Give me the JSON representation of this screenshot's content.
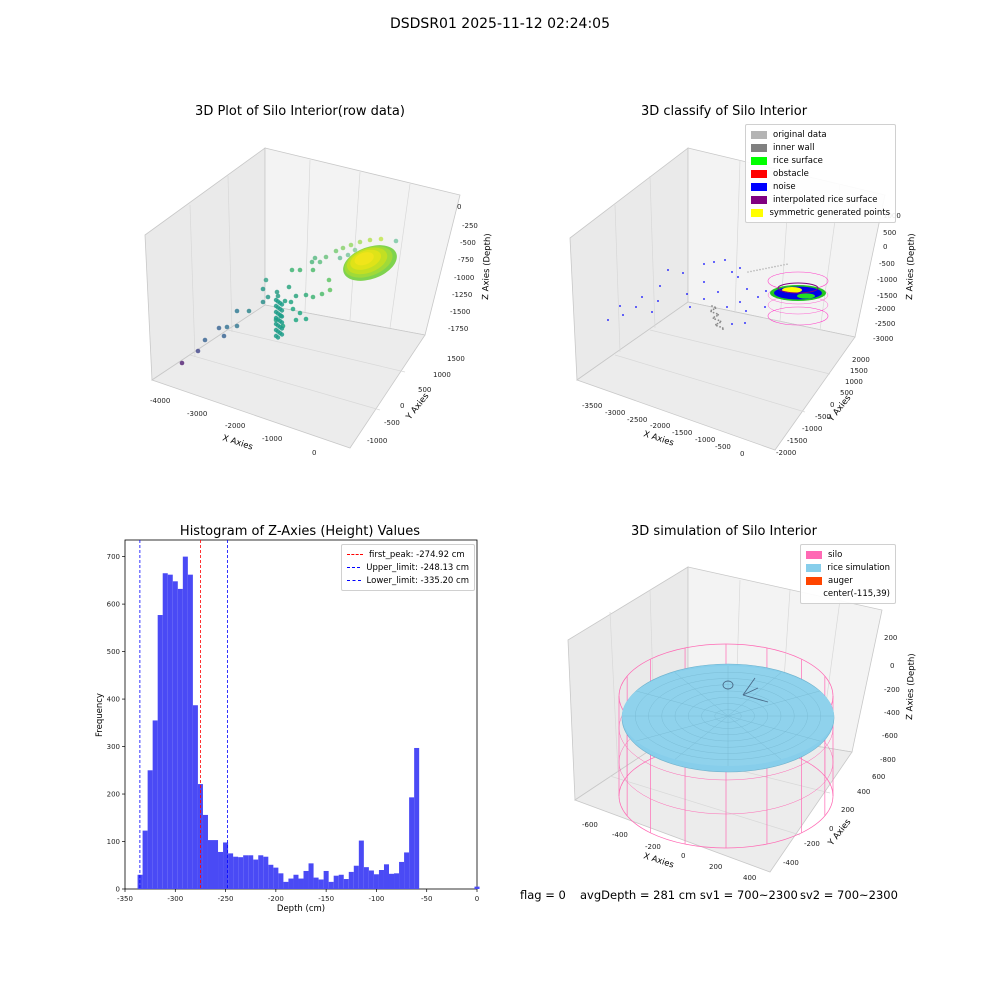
{
  "suptitle": "DSDSR01 2025-11-12 02:24:05",
  "colors": {
    "pane": "#eeeeee",
    "grid": "#d4d4d4",
    "hist_bar": "#4a4af5"
  },
  "panels": {
    "raw": {
      "title": "3D Plot of Silo Interior(row data)",
      "xlabel": "X Axies",
      "ylabel": "Y Axies",
      "zlabel": "Z Axies (Depth)",
      "xticks": [
        "-4000",
        "-3000",
        "-2000",
        "-1000",
        "0"
      ],
      "yticks": [
        "-1000",
        "-500",
        "0",
        "500",
        "1000",
        "1500"
      ],
      "zticks": [
        "0",
        "-250",
        "-500",
        "-750",
        "-1000",
        "-1250",
        "-1500",
        "-1750"
      ]
    },
    "classify": {
      "title": "3D classify of Silo Interior",
      "xlabel": "X Axies",
      "ylabel": "Y Axies",
      "zlabel": "Z Axies (Depth)",
      "xticks": [
        "-3500",
        "-3000",
        "-2500",
        "-2000",
        "-1500",
        "-1000",
        "-500",
        "0"
      ],
      "yticks": [
        "-2000",
        "-1500",
        "-1000",
        "-500",
        "0",
        "500",
        "1000",
        "1500",
        "2000"
      ],
      "zticks": [
        "1000",
        "500",
        "0",
        "-500",
        "-1000",
        "-1500",
        "-2000",
        "-2500",
        "-3000"
      ],
      "legend": [
        {
          "label": "original data",
          "color": "#b4b4b4"
        },
        {
          "label": "inner wall",
          "color": "#808080"
        },
        {
          "label": "rice surface",
          "color": "#00ff00"
        },
        {
          "label": "obstacle",
          "color": "#ff0000"
        },
        {
          "label": "noise",
          "color": "#0000ff"
        },
        {
          "label": "interpolated rice surface",
          "color": "#800080"
        },
        {
          "label": "symmetric generated points",
          "color": "#ffff00"
        }
      ]
    },
    "simulation": {
      "title": "3D simulation of Silo Interior",
      "xlabel": "X Axies",
      "ylabel": "Y Axies",
      "zlabel": "Z Axies (Depth)",
      "xticks": [
        "-600",
        "-400",
        "-200",
        "0",
        "200",
        "400"
      ],
      "yticks": [
        "-400",
        "-200",
        "0",
        "200",
        "400",
        "600"
      ],
      "zticks": [
        "200",
        "0",
        "-200",
        "-400",
        "-600",
        "-800"
      ],
      "legend": [
        {
          "label": "silo",
          "color": "#ff69b4"
        },
        {
          "label": "rice simulation",
          "color": "#87ceeb"
        },
        {
          "label": "auger",
          "color": "#ff4500"
        },
        {
          "label": "center(-115,39)",
          "color": ""
        }
      ]
    }
  },
  "chart_data": {
    "type": "bar",
    "title": "Histogram of Z-Axies (Height) Values",
    "xlabel": "Depth (cm)",
    "ylabel": "Frequency",
    "xlim": [
      -350,
      0
    ],
    "ylim": [
      0,
      735
    ],
    "bin_width": 5,
    "xticks": [
      -350,
      -300,
      -250,
      -200,
      -150,
      -100,
      -50,
      0
    ],
    "yticks": [
      0,
      100,
      200,
      300,
      400,
      500,
      600,
      700
    ],
    "bins_start": [
      -337.5,
      -332.5,
      -327.5,
      -322.5,
      -317.5,
      -312.5,
      -307.5,
      -302.5,
      -297.5,
      -292.5,
      -287.5,
      -282.5,
      -277.5,
      -272.5,
      -267.5,
      -262.5,
      -257.5,
      -252.5,
      -247.5,
      -242.5,
      -237.5,
      -232.5,
      -227.5,
      -222.5,
      -217.5,
      -212.5,
      -207.5,
      -202.5,
      -197.5,
      -192.5,
      -187.5,
      -182.5,
      -177.5,
      -172.5,
      -167.5,
      -162.5,
      -157.5,
      -152.5,
      -147.5,
      -142.5,
      -137.5,
      -132.5,
      -127.5,
      -122.5,
      -117.5,
      -112.5,
      -107.5,
      -102.5,
      -97.5,
      -92.5,
      -87.5,
      -82.5,
      -77.5,
      -72.5,
      -67.5,
      -62.5,
      -57.5,
      -52.5,
      -47.5,
      -42.5,
      -37.5,
      -32.5,
      -27.5,
      -22.5,
      -17.5,
      -12.5,
      -7.5,
      -2.5
    ],
    "values": [
      30,
      123,
      250,
      355,
      577,
      665,
      662,
      648,
      632,
      700,
      662,
      387,
      221,
      156,
      103,
      103,
      78,
      98,
      75,
      68,
      67,
      71,
      71,
      62,
      71,
      68,
      51,
      45,
      33,
      15,
      22,
      30,
      22,
      38,
      54,
      24,
      20,
      38,
      15,
      28,
      30,
      21,
      36,
      49,
      102,
      46,
      39,
      31,
      40,
      52,
      32,
      33,
      57,
      77,
      193,
      297,
      0,
      0,
      0,
      0,
      0,
      0,
      0,
      0,
      0,
      0,
      0,
      5
    ],
    "lines": [
      {
        "label": "first_peak: -274.92 cm",
        "x": -274.92,
        "color": "#ff0000"
      },
      {
        "label": "Upper_limit: -248.13 cm",
        "x": -248.13,
        "color": "#0000ff"
      },
      {
        "label": "Lower_limit: -335.20 cm",
        "x": -335.2,
        "color": "#0000ff"
      }
    ]
  },
  "footer": {
    "flag": "flag = 0",
    "avg": "avgDepth = 281 cm  sv1 = 700~2300",
    "sv2": "sv2 = 700~2300"
  }
}
